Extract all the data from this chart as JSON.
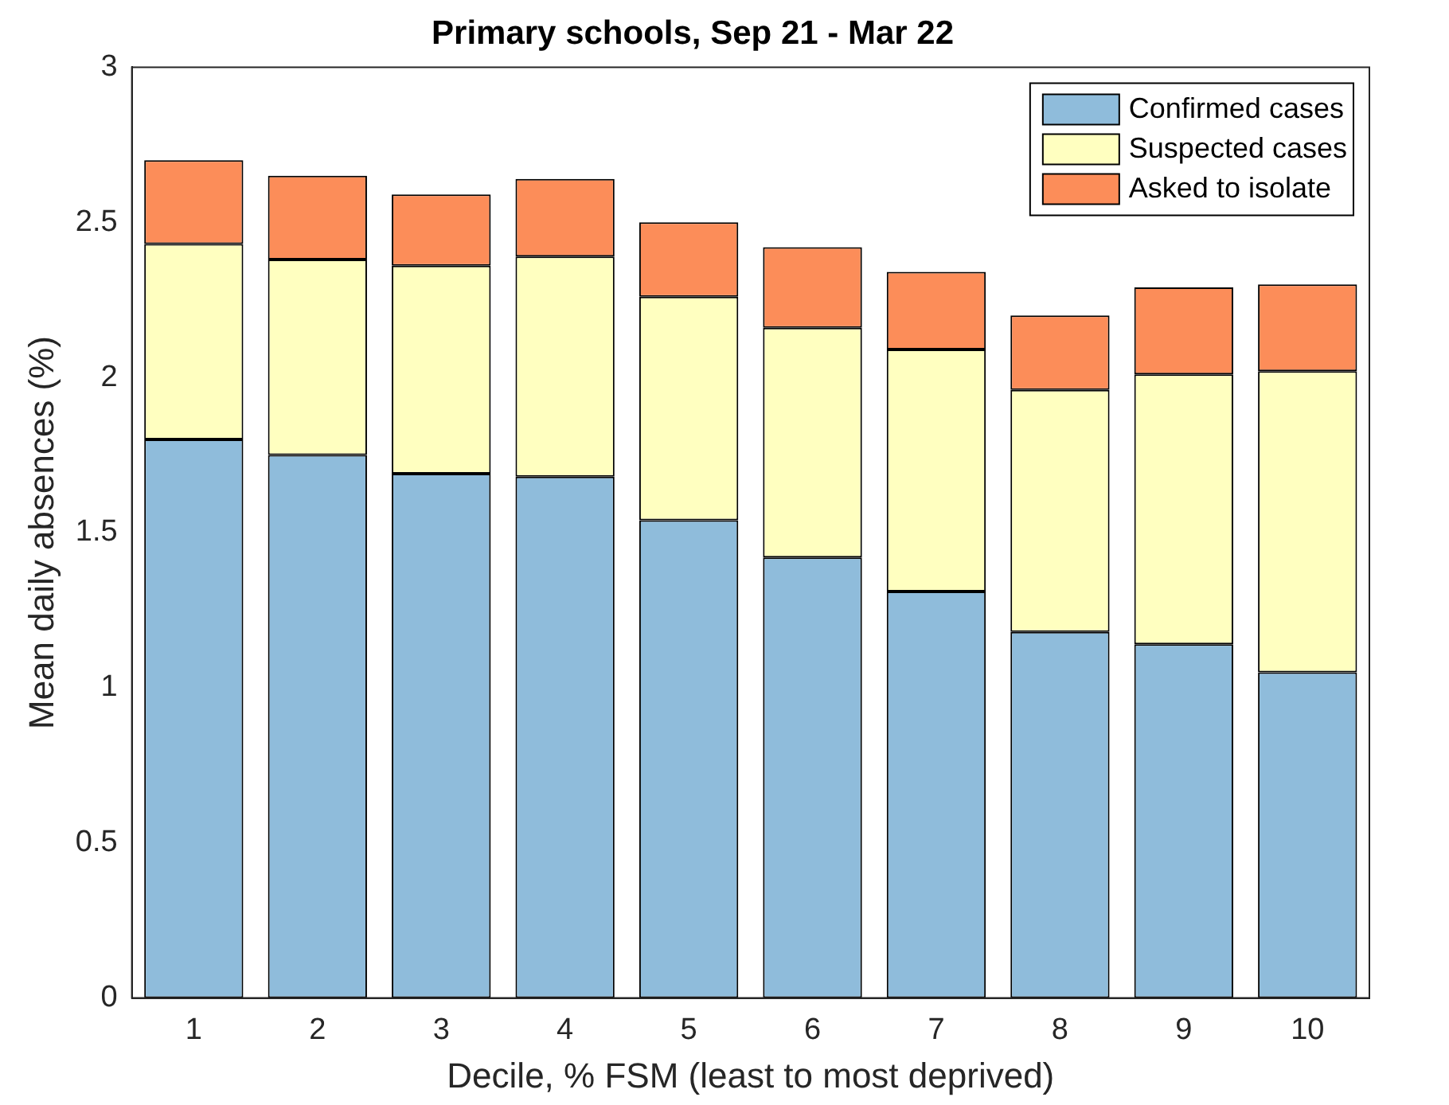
{
  "chart_data": {
    "type": "bar",
    "title": "Primary schools, Sep 21 - Mar 22",
    "xlabel": "Decile, % FSM (least to most deprived)",
    "ylabel": "Mean daily absences (%)",
    "categories": [
      "1",
      "2",
      "3",
      "4",
      "5",
      "6",
      "7",
      "8",
      "9",
      "10"
    ],
    "stacked": true,
    "ylim": [
      0,
      3
    ],
    "yticks": [
      0,
      0.5,
      1,
      1.5,
      2,
      2.5,
      3
    ],
    "grid": false,
    "legend": "top right",
    "series": [
      {
        "name": "Confirmed cases",
        "color": "#8fbcdb",
        "values": [
          1.8,
          1.75,
          1.69,
          1.68,
          1.54,
          1.42,
          1.31,
          1.18,
          1.14,
          1.05
        ]
      },
      {
        "name": "Suspected cases",
        "color": "#ffffc0",
        "values": [
          0.63,
          0.63,
          0.67,
          0.71,
          0.72,
          0.74,
          0.78,
          0.78,
          0.87,
          0.97
        ]
      },
      {
        "name": "Asked to isolate",
        "color": "#fc8d59",
        "values": [
          0.27,
          0.27,
          0.23,
          0.25,
          0.24,
          0.26,
          0.25,
          0.24,
          0.28,
          0.28
        ]
      }
    ]
  }
}
